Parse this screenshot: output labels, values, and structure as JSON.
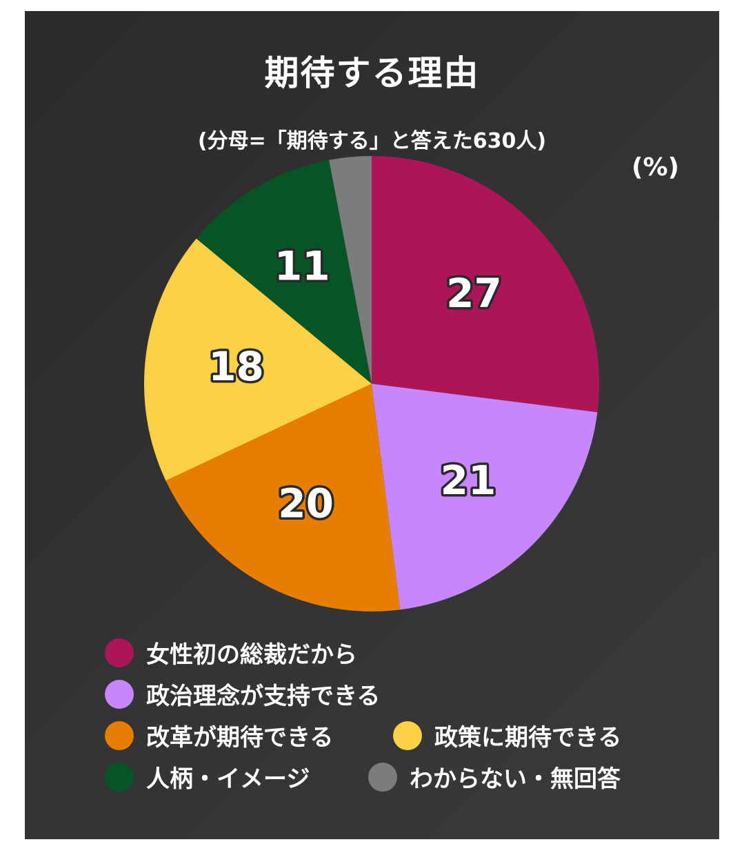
{
  "chart_data": {
    "type": "pie",
    "title": "期待する理由",
    "subtitle": "(分母=「期待する」と答えた630人)",
    "unit_label": "(%)",
    "slices": [
      {
        "label": "女性初の総裁だから",
        "value": 27,
        "value_label": "27",
        "color": "#AD1656"
      },
      {
        "label": "政治理念が支持できる",
        "value": 21,
        "value_label": "21",
        "color": "#C786F9"
      },
      {
        "label": "改革が期待できる",
        "value": 20,
        "value_label": "20",
        "color": "#E67E01"
      },
      {
        "label": "政策に期待できる",
        "value": 18,
        "value_label": "18",
        "color": "#FDD146"
      },
      {
        "label": "人柄・イメージ",
        "value": 11,
        "value_label": "11",
        "color": "#075524"
      },
      {
        "label": "わからない・無回答",
        "value": 3,
        "value_label": "",
        "color": "#7C7B7E"
      }
    ],
    "legend_position": "bottom"
  }
}
